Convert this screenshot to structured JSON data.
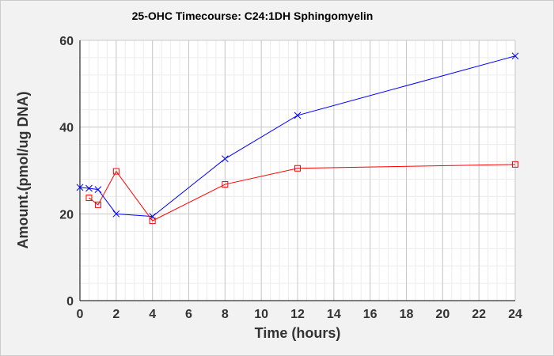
{
  "chart_data": {
    "type": "line",
    "title": "25-OHC Timecourse: C24:1DH Sphingomyelin",
    "xlabel": "Time (hours)",
    "ylabel": "Amount.(pmol/ug DNA)",
    "xlim": [
      0,
      24
    ],
    "ylim": [
      0,
      60
    ],
    "xticks": [
      0,
      2,
      4,
      6,
      8,
      10,
      12,
      14,
      16,
      18,
      20,
      22,
      24
    ],
    "yticks": [
      0,
      20,
      40,
      60
    ],
    "grid": true,
    "series": [
      {
        "name": "blue series",
        "color": "#0000ff",
        "marker": "x",
        "x": [
          0,
          0.5,
          1,
          2,
          4,
          8,
          12,
          24
        ],
        "y": [
          26.1,
          25.9,
          25.6,
          20.0,
          19.4,
          32.7,
          42.7,
          56.4
        ]
      },
      {
        "name": "red series",
        "color": "#ff0000",
        "marker": "square",
        "x": [
          0.5,
          1,
          2,
          4,
          8,
          12,
          24
        ],
        "y": [
          23.7,
          22.1,
          29.8,
          18.4,
          26.8,
          30.5,
          31.4
        ]
      }
    ]
  }
}
